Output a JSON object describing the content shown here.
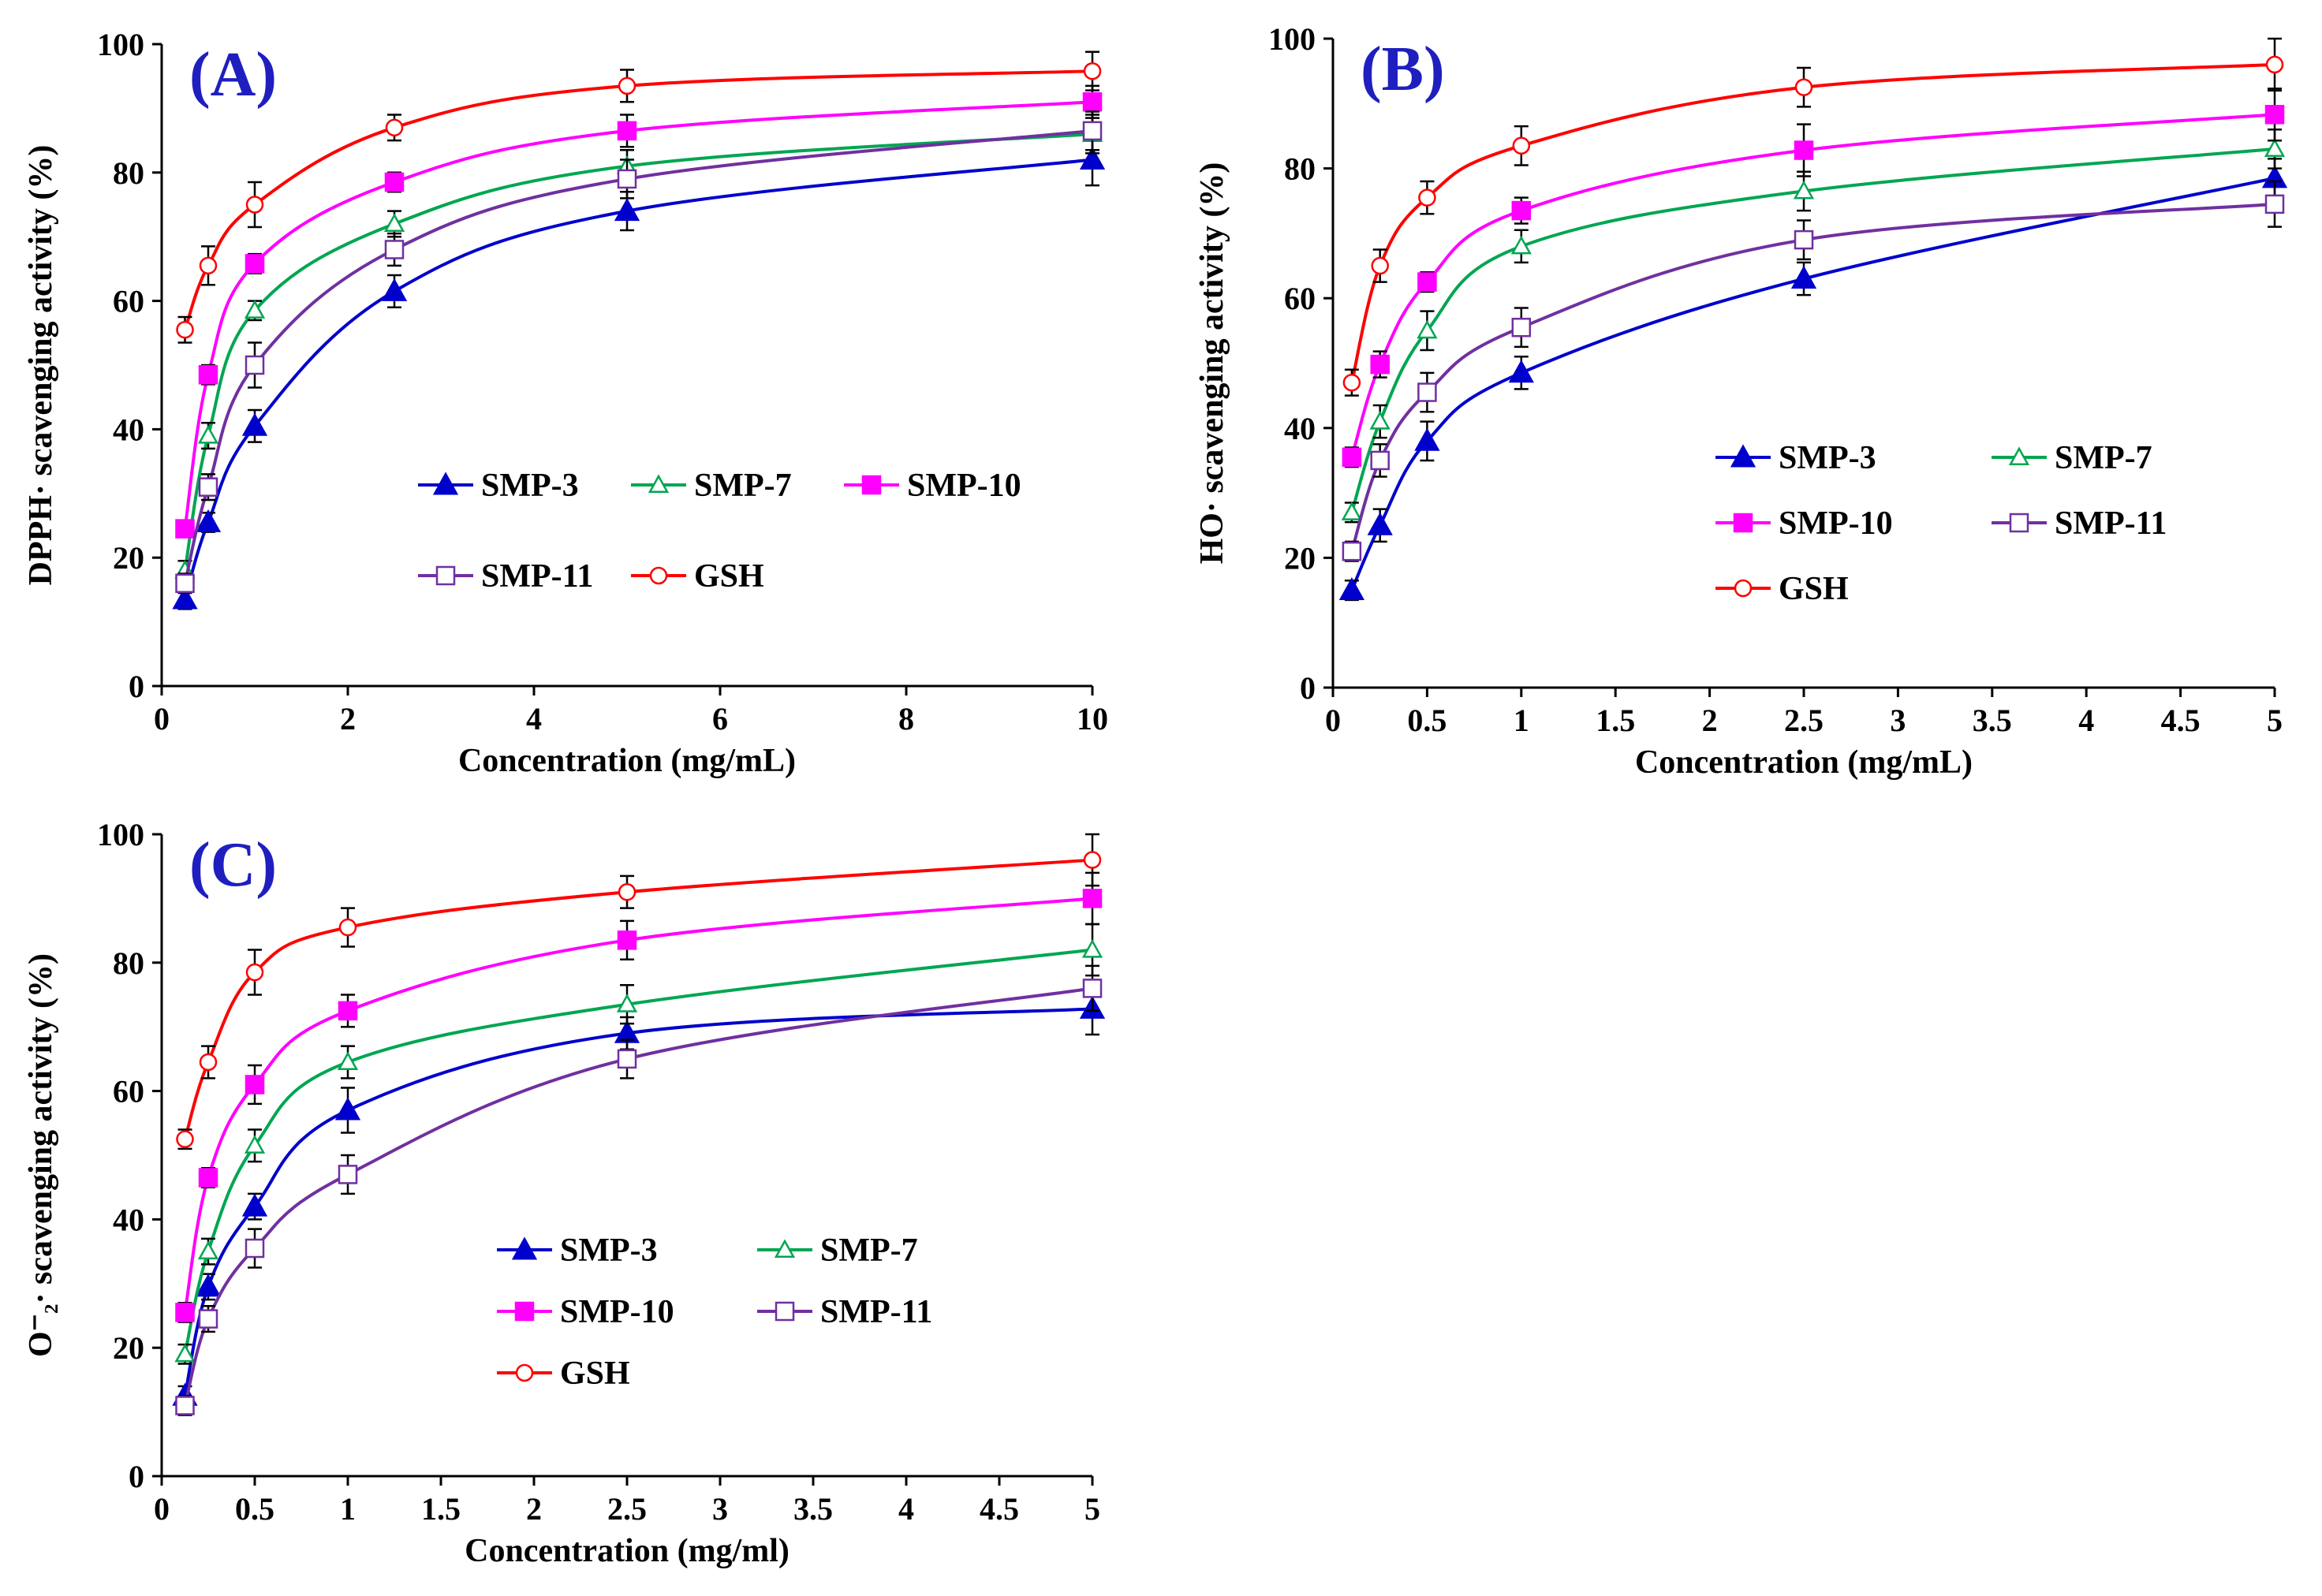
{
  "chart_data": [
    {
      "type": "line",
      "panel_label": "(A)",
      "xlabel": "Concentration (mg/mL)",
      "ylabel": "DPPH· scavenging activity (%)",
      "xlim": [
        0,
        10
      ],
      "ylim": [
        0,
        100
      ],
      "xticks": [
        0,
        2,
        4,
        6,
        8,
        10
      ],
      "xtick_labels": [
        "0",
        "2",
        "4",
        "6",
        "8",
        "10"
      ],
      "yticks": [
        0,
        20,
        40,
        60,
        80,
        100
      ],
      "ytick_labels": [
        "0",
        "20",
        "40",
        "60",
        "80",
        "100"
      ],
      "legend_columns": 3,
      "legend_position": "center-right",
      "x": [
        0.25,
        0.5,
        1,
        2.5,
        5,
        10
      ],
      "series": [
        {
          "name": "SMP-3",
          "color": "#0000cc",
          "marker": "filled-triangle",
          "values": [
            13.5,
            25.5,
            40.5,
            61.5,
            74,
            82
          ],
          "errors": [
            1.5,
            1.5,
            2.5,
            2.5,
            3,
            4
          ]
        },
        {
          "name": "SMP-7",
          "color": "#00a651",
          "marker": "open-triangle",
          "values": [
            18,
            39,
            58.5,
            72,
            81,
            86
          ],
          "errors": [
            1.5,
            2,
            1.5,
            2,
            2.5,
            3
          ]
        },
        {
          "name": "SMP-10",
          "color": "#ff00ff",
          "marker": "filled-square",
          "values": [
            24.5,
            48.5,
            65.8,
            78.5,
            86.5,
            91
          ],
          "errors": [
            1,
            1.5,
            1.5,
            1.5,
            2.5,
            2.5
          ]
        },
        {
          "name": "SMP-11",
          "color": "#7030a0",
          "marker": "open-square",
          "values": [
            16,
            31,
            50,
            68,
            79,
            86.5
          ],
          "errors": [
            1.5,
            2,
            3.5,
            2.5,
            3,
            3
          ]
        },
        {
          "name": "GSH",
          "color": "#ff0000",
          "marker": "open-circle",
          "values": [
            55.5,
            65.5,
            75,
            87,
            93.5,
            95.8
          ],
          "errors": [
            2,
            3,
            3.5,
            2,
            2.5,
            3
          ]
        }
      ]
    },
    {
      "type": "line",
      "panel_label": "(B)",
      "xlabel": "Concentration (mg/mL)",
      "ylabel": "HO· scavenging activity (%)",
      "xlim": [
        0,
        5
      ],
      "ylim": [
        0,
        100
      ],
      "xticks": [
        0,
        0.5,
        1,
        1.5,
        2,
        2.5,
        3,
        3.5,
        4,
        4.5,
        5
      ],
      "xtick_labels": [
        "0",
        "0.5",
        "1",
        "1.5",
        "2",
        "2.5",
        "3",
        "3.5",
        "4",
        "4.5",
        "5"
      ],
      "yticks": [
        0,
        20,
        40,
        60,
        80,
        100
      ],
      "ytick_labels": [
        "0",
        "20",
        "40",
        "60",
        "80",
        "100"
      ],
      "legend_columns": 2,
      "legend_position": "lower-right",
      "x": [
        0.1,
        0.25,
        0.5,
        1,
        2.5,
        5
      ],
      "series": [
        {
          "name": "SMP-3",
          "color": "#0000cc",
          "marker": "filled-triangle",
          "values": [
            15,
            25,
            38,
            48.5,
            63,
            78.5
          ],
          "errors": [
            1.5,
            2.5,
            3,
            2.5,
            2.5,
            3
          ]
        },
        {
          "name": "SMP-7",
          "color": "#00a651",
          "marker": "open-triangle",
          "values": [
            27,
            41,
            55,
            68,
            76.5,
            83
          ],
          "errors": [
            1.5,
            2.5,
            3,
            2.5,
            3,
            3
          ]
        },
        {
          "name": "SMP-10",
          "color": "#ff00ff",
          "marker": "filled-square",
          "values": [
            35.5,
            49.8,
            62.5,
            73.5,
            82.8,
            88.3
          ],
          "errors": [
            1.5,
            2,
            1.5,
            2,
            4,
            4
          ]
        },
        {
          "name": "SMP-11",
          "color": "#7030a0",
          "marker": "open-square",
          "values": [
            21,
            35,
            45.5,
            55.5,
            69,
            74.5
          ],
          "errors": [
            1.5,
            2.5,
            3,
            3,
            3,
            3.5
          ]
        },
        {
          "name": "GSH",
          "color": "#ff0000",
          "marker": "open-circle",
          "values": [
            47,
            65,
            75.5,
            83.5,
            92.5,
            96
          ],
          "errors": [
            2,
            2.5,
            2.5,
            3,
            3,
            4
          ]
        }
      ]
    },
    {
      "type": "line",
      "panel_label": "(C)",
      "xlabel": "Concentration (mg/ml)",
      "ylabel": "O⁻₂· scavenging activity (%)",
      "xlim": [
        0,
        5
      ],
      "ylim": [
        0,
        100
      ],
      "xticks": [
        0,
        0.5,
        1,
        1.5,
        2,
        2.5,
        3,
        3.5,
        4,
        4.5,
        5
      ],
      "xtick_labels": [
        "0",
        "0.5",
        "1",
        "1.5",
        "2",
        "2.5",
        "3",
        "3.5",
        "4",
        "4.5",
        "5"
      ],
      "yticks": [
        0,
        20,
        40,
        60,
        80,
        100
      ],
      "ytick_labels": [
        "0",
        "20",
        "40",
        "60",
        "80",
        "100"
      ],
      "legend_columns": 2,
      "legend_position": "lower-middle",
      "x": [
        0.125,
        0.25,
        0.5,
        1,
        2.5,
        5
      ],
      "series": [
        {
          "name": "SMP-3",
          "color": "#0000cc",
          "marker": "filled-triangle",
          "values": [
            12.5,
            29.5,
            42,
            57,
            69,
            72.8
          ],
          "errors": [
            1.5,
            2,
            2,
            3.5,
            2.5,
            4
          ]
        },
        {
          "name": "SMP-7",
          "color": "#00a651",
          "marker": "open-triangle",
          "values": [
            19,
            35,
            51.5,
            64.5,
            73.5,
            82
          ],
          "errors": [
            1.5,
            2,
            2.5,
            2.5,
            3,
            4
          ]
        },
        {
          "name": "SMP-10",
          "color": "#ff00ff",
          "marker": "filled-square",
          "values": [
            25.5,
            46.5,
            61,
            72.5,
            83.5,
            90
          ],
          "errors": [
            1.5,
            1.5,
            3,
            2.5,
            3,
            4
          ]
        },
        {
          "name": "SMP-11",
          "color": "#7030a0",
          "marker": "open-square",
          "values": [
            11,
            24.5,
            35.5,
            47,
            65,
            76
          ],
          "errors": [
            1.5,
            2,
            3,
            3,
            3,
            3.5
          ]
        },
        {
          "name": "GSH",
          "color": "#ff0000",
          "marker": "open-circle",
          "values": [
            52.5,
            64.5,
            78.5,
            85.5,
            91,
            96
          ],
          "errors": [
            1.5,
            2.5,
            3.5,
            3,
            2.5,
            4
          ]
        }
      ]
    }
  ]
}
